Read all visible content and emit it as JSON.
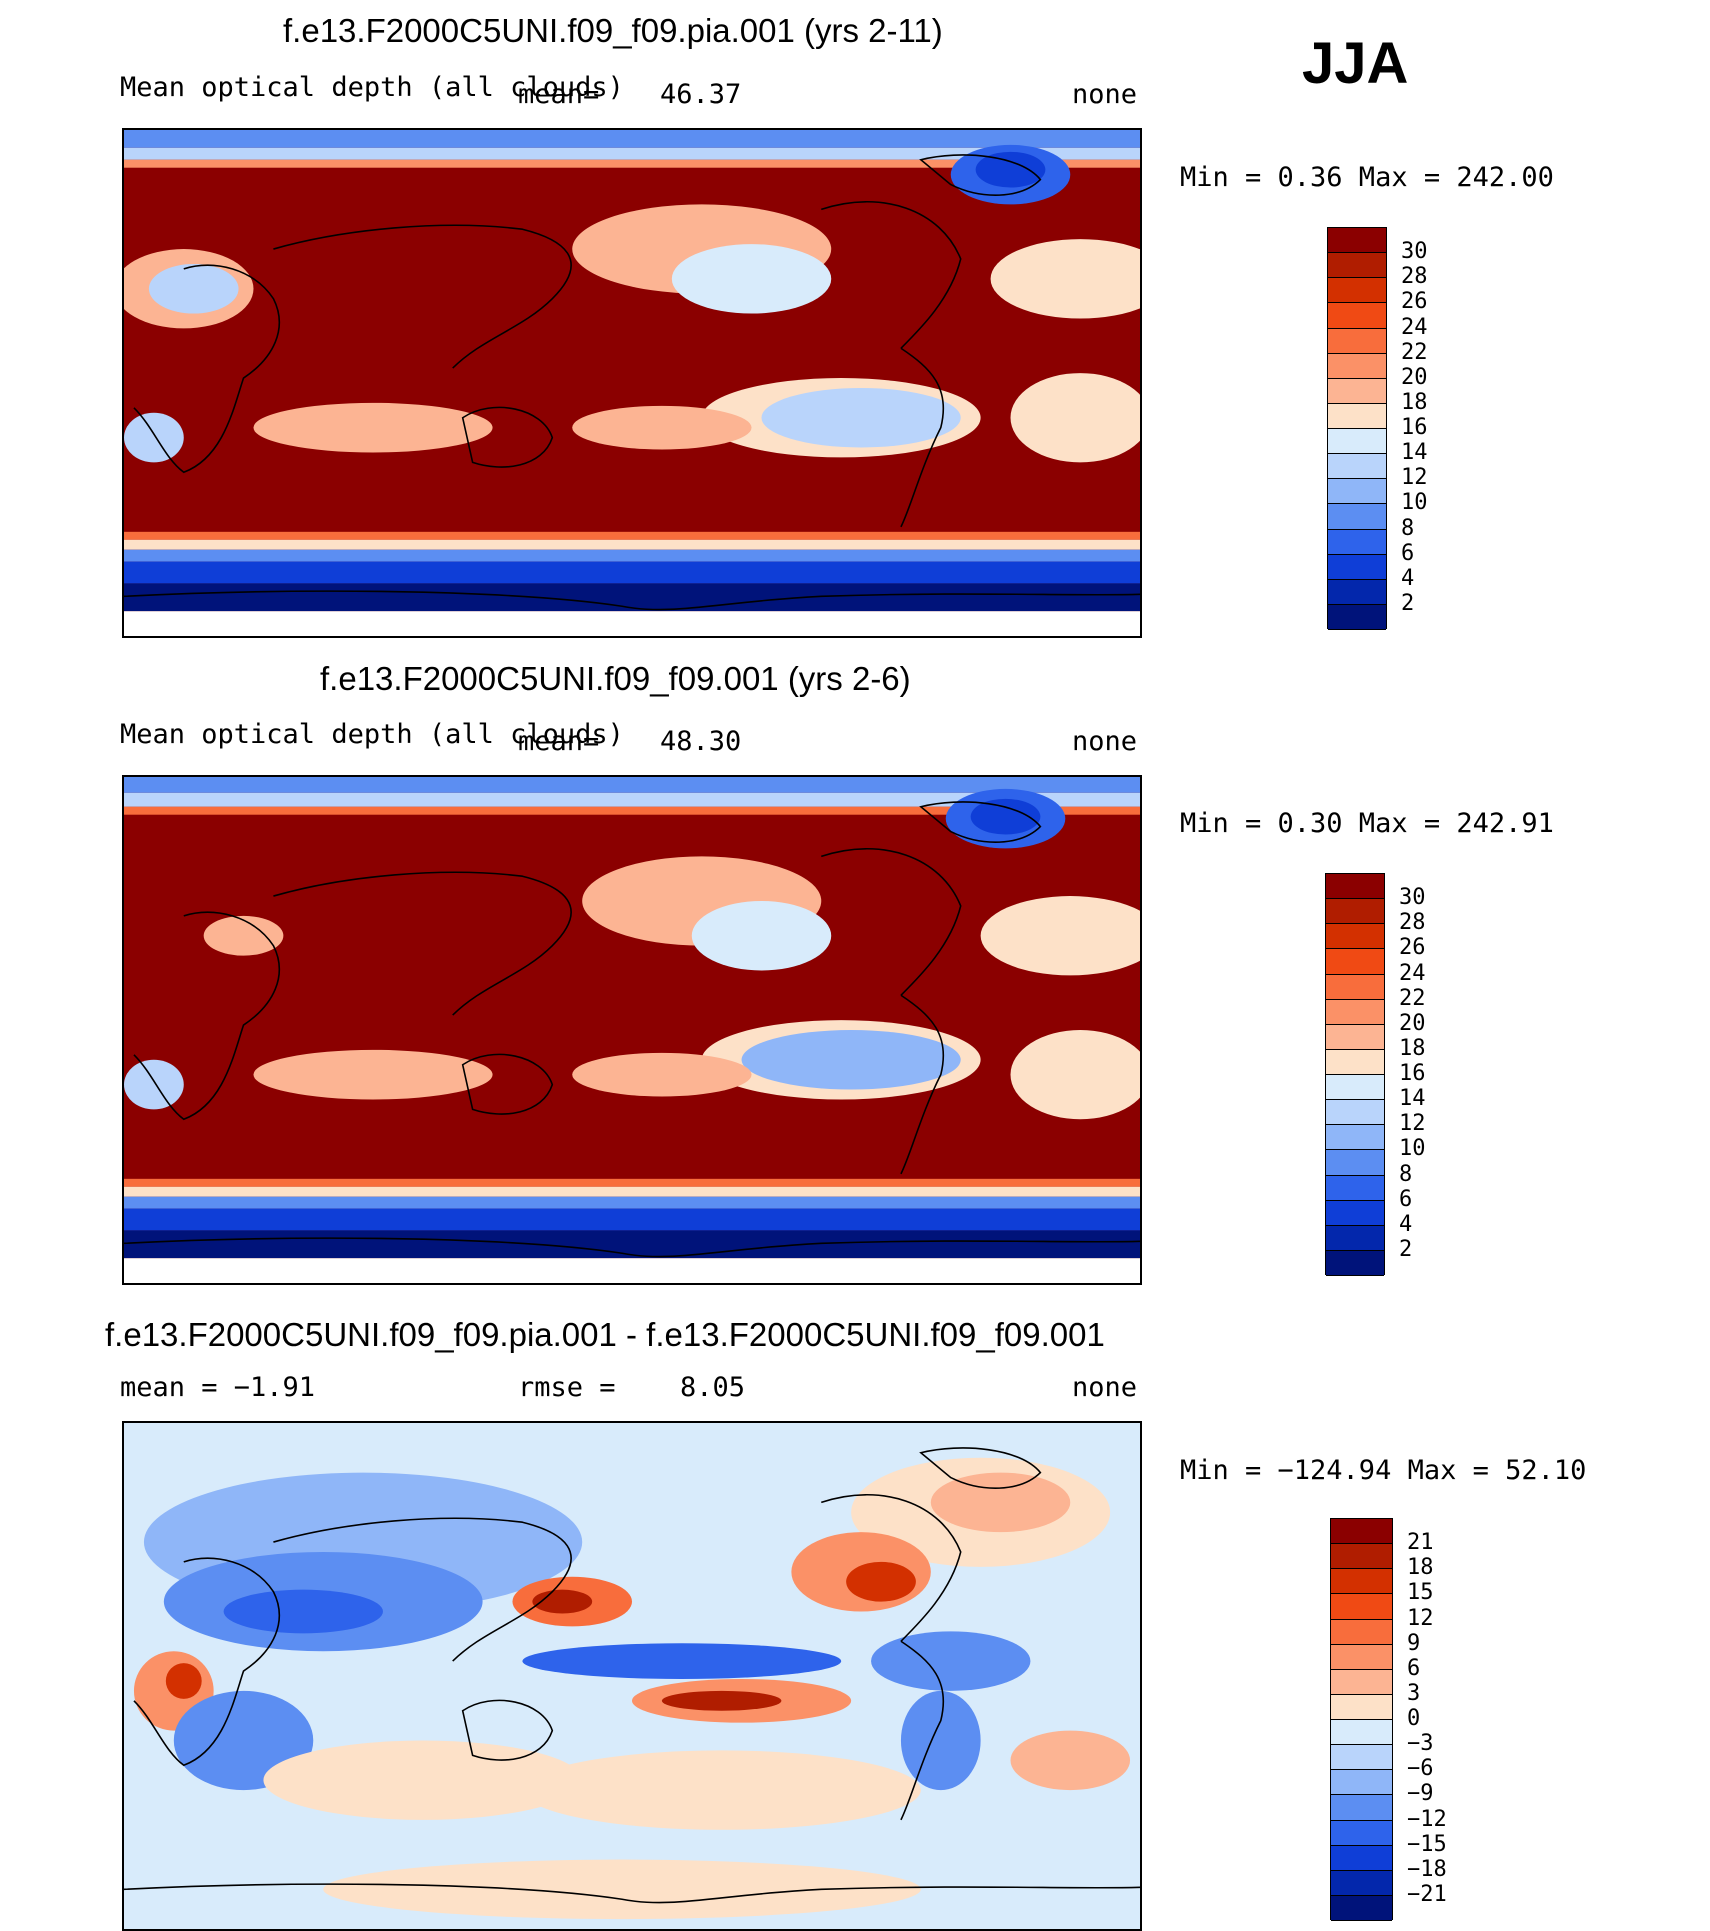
{
  "season": "JJA",
  "panels": [
    {
      "title": "f.e13.F2000C5UNI.f09_f09.pia.001 (yrs 2-11)",
      "left_label": "Mean optical depth (all clouds)",
      "mid_label": "mean=",
      "mid_value": "46.37",
      "units": "none",
      "minmax": "Min =     0.36 Max  =  242.00"
    },
    {
      "title": "f.e13.F2000C5UNI.f09_f09.001 (yrs 2-6)",
      "left_label": "Mean optical depth (all clouds)",
      "mid_label": "mean=",
      "mid_value": "48.30",
      "units": "none",
      "minmax": "Min =     0.30 Max  =  242.91"
    },
    {
      "title": "f.e13.F2000C5UNI.f09_f09.pia.001 - f.e13.F2000C5UNI.f09_f09.001",
      "left_label": "mean =   −1.91",
      "mid_label": "rmse =",
      "mid_value": "8.05",
      "units": "none",
      "minmax": "Min = −124.94 Max =   52.10"
    }
  ],
  "colorbars": [
    {
      "labels": [
        "30",
        "28",
        "26",
        "24",
        "22",
        "20",
        "18",
        "16",
        "14",
        "12",
        "10",
        "8",
        "6",
        "4",
        "2"
      ],
      "colors": [
        "#8b0000",
        "#b01d00",
        "#d33000",
        "#f04a14",
        "#f86d3c",
        "#fb9167",
        "#fcb493",
        "#fde1c8",
        "#d8ebfb",
        "#b9d4fb",
        "#8fb6f8",
        "#5c8ef2",
        "#2e63eb",
        "#0f3ed7",
        "#0327ac",
        "#00137a"
      ]
    },
    {
      "labels": [
        "30",
        "28",
        "26",
        "24",
        "22",
        "20",
        "18",
        "16",
        "14",
        "12",
        "10",
        "8",
        "6",
        "4",
        "2"
      ],
      "colors": [
        "#8b0000",
        "#b01d00",
        "#d33000",
        "#f04a14",
        "#f86d3c",
        "#fb9167",
        "#fcb493",
        "#fde1c8",
        "#d8ebfb",
        "#b9d4fb",
        "#8fb6f8",
        "#5c8ef2",
        "#2e63eb",
        "#0f3ed7",
        "#0327ac",
        "#00137a"
      ]
    },
    {
      "labels": [
        "21",
        "18",
        "15",
        "12",
        "9",
        "6",
        "3",
        "0",
        "−3",
        "−6",
        "−9",
        "−12",
        "−15",
        "−18",
        "−21"
      ],
      "colors": [
        "#8b0000",
        "#b01d00",
        "#d33000",
        "#f04a14",
        "#f86d3c",
        "#fb9167",
        "#fcb493",
        "#fde1c8",
        "#d8ebfb",
        "#b9d4fb",
        "#8fb6f8",
        "#5c8ef2",
        "#2e63eb",
        "#0f3ed7",
        "#0327ac",
        "#00137a"
      ]
    }
  ]
}
